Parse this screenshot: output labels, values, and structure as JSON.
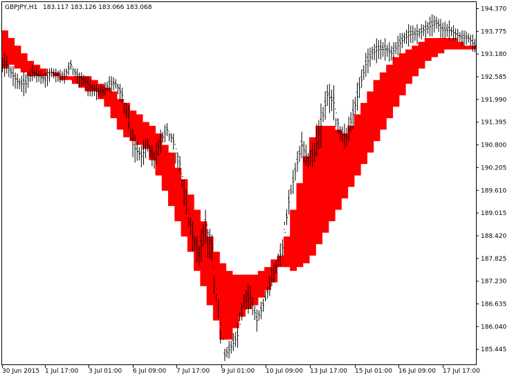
{
  "header": {
    "symbol": "GBPJPY,H1",
    "ohlc": "183.117 183.126 183.066 183.068"
  },
  "colors": {
    "background": "#ffffff",
    "frame": "#000000",
    "bars": "#000000",
    "bearish_cloud": "#ff0000",
    "bullish_cloud": "#0000ff"
  },
  "chart_data": {
    "type": "line",
    "ylim": [
      185.05,
      194.56
    ],
    "y_ticks": [
      "194.370",
      "193.775",
      "193.180",
      "192.585",
      "191.990",
      "191.395",
      "190.800",
      "190.205",
      "189.610",
      "189.015",
      "188.420",
      "187.825",
      "187.230",
      "186.635",
      "186.040",
      "185.445"
    ],
    "x_ticks": [
      "30 Jun 2015",
      "1 Jul 17:00",
      "3 Jul 01:00",
      "6 Jul 09:00",
      "7 Jul 17:00",
      "9 Jul 01:00",
      "10 Jul 09:00",
      "13 Jul 17:00",
      "15 Jul 01:00",
      "16 Jul 09:00",
      "17 Jul 17:00"
    ],
    "series": [
      {
        "role": "price",
        "values": [
          192.9,
          192.6,
          192.4,
          192.4,
          192.7,
          192.6,
          192.5,
          192.7,
          192.6,
          192.6,
          192.9,
          192.6,
          192.5,
          192.3,
          192.2,
          192.2,
          192.4,
          192.4,
          192.1,
          191.5,
          190.7,
          190.5,
          190.8,
          190.4,
          190.9,
          191.2,
          190.9,
          190.3,
          189.3,
          188.4,
          187.9,
          188.7,
          188.1,
          186.5,
          185.3,
          185.5,
          185.8,
          186.7,
          186.8,
          186.2,
          186.6,
          187.1,
          187.6,
          188.1,
          189.3,
          190.1,
          190.8,
          190.4,
          190.6,
          191.3,
          192.1,
          191.9,
          191.1,
          191.0,
          191.6,
          192.3,
          192.9,
          193.2,
          193.3,
          193.3,
          193.2,
          193.4,
          193.6,
          193.7,
          193.7,
          193.8,
          193.9,
          194.0,
          193.8,
          193.8,
          193.7,
          193.6,
          193.6,
          193.4
        ],
        "lows": [
          192.3,
          192.0,
          191.9,
          191.8,
          192.2,
          192.2,
          192.1,
          192.2,
          192.2,
          192.2,
          192.5,
          192.1,
          191.9,
          191.7,
          191.7,
          191.8,
          191.9,
          191.9,
          191.6,
          190.9,
          189.5,
          190.0,
          190.2,
          189.9,
          190.2,
          190.6,
          190.3,
          189.4,
          188.6,
          187.7,
          187.2,
          187.4,
          186.6,
          185.9,
          185.1,
          185.1,
          185.4,
          186.2,
          186.1,
          185.9,
          186.2,
          186.7,
          187.1,
          187.6,
          188.7,
          189.5,
          190.1,
          189.8,
          190.0,
          190.5,
          191.4,
          190.8,
          190.4,
          190.4,
          190.9,
          191.6,
          192.3,
          192.6,
          192.7,
          192.8,
          192.7,
          192.9,
          193.1,
          193.2,
          193.2,
          193.4,
          193.4,
          193.5,
          193.3,
          193.3,
          193.3,
          193.2,
          193.1,
          193.0
        ],
        "highs": [
          193.4,
          192.9,
          192.7,
          192.8,
          192.9,
          192.9,
          192.8,
          192.9,
          192.8,
          192.8,
          193.1,
          192.8,
          192.7,
          192.6,
          192.4,
          192.4,
          192.6,
          192.6,
          192.4,
          191.9,
          191.2,
          191.0,
          191.2,
          190.8,
          191.2,
          191.4,
          191.1,
          190.6,
          189.9,
          188.9,
          188.4,
          189.1,
          188.6,
          186.9,
          185.6,
          185.9,
          186.5,
          187.2,
          187.3,
          186.8,
          187.0,
          187.6,
          188.1,
          188.5,
          189.7,
          190.6,
          191.3,
          190.9,
          191.0,
          192.3,
          192.7,
          192.4,
          191.5,
          191.4,
          192.1,
          192.9,
          193.4,
          193.6,
          193.7,
          193.7,
          193.6,
          193.8,
          193.9,
          194.1,
          194.0,
          194.1,
          194.3,
          194.4,
          194.1,
          194.1,
          194.0,
          193.9,
          193.8,
          193.7
        ]
      },
      {
        "role": "cloud-upper",
        "values": [
          193.8,
          193.6,
          193.4,
          193.2,
          193.0,
          192.9,
          192.8,
          192.7,
          192.7,
          192.6,
          192.6,
          192.6,
          192.6,
          192.6,
          192.5,
          192.4,
          192.3,
          192.2,
          192.0,
          191.9,
          191.7,
          191.6,
          191.4,
          191.3,
          191.1,
          190.8,
          190.6,
          190.2,
          189.9,
          189.5,
          189.1,
          188.8,
          188.4,
          188.0,
          187.7,
          187.5,
          187.4,
          187.4,
          187.4,
          187.4,
          187.5,
          187.6,
          187.8,
          187.9,
          188.4,
          189.1,
          189.8,
          190.5,
          191.0,
          191.3,
          191.3,
          191.3,
          191.2,
          191.1,
          191.3,
          191.6,
          191.9,
          192.2,
          192.5,
          192.7,
          192.9,
          193.1,
          193.2,
          193.3,
          193.4,
          193.5,
          193.6,
          193.6,
          193.6,
          193.6,
          193.6,
          193.5,
          193.4,
          193.4
        ]
      },
      {
        "role": "cloud-lower",
        "values": [
          192.8,
          192.9,
          192.8,
          192.7,
          192.6,
          192.6,
          192.6,
          192.7,
          192.6,
          192.5,
          192.5,
          192.4,
          192.3,
          192.2,
          192.2,
          192.0,
          191.8,
          191.5,
          191.2,
          191.0,
          190.9,
          190.8,
          190.7,
          190.4,
          190.0,
          189.6,
          189.2,
          188.8,
          188.4,
          188.0,
          187.5,
          187.1,
          186.6,
          186.2,
          185.7,
          185.7,
          186.0,
          186.3,
          186.5,
          186.6,
          186.8,
          187.0,
          187.2,
          187.6,
          187.6,
          187.5,
          187.6,
          187.7,
          187.9,
          188.2,
          188.5,
          188.8,
          189.1,
          189.4,
          189.7,
          190.0,
          190.3,
          190.6,
          190.9,
          191.2,
          191.5,
          191.8,
          192.1,
          192.4,
          192.6,
          192.8,
          193.0,
          193.1,
          193.2,
          193.3,
          193.3,
          193.3,
          193.3,
          193.3
        ]
      }
    ]
  }
}
